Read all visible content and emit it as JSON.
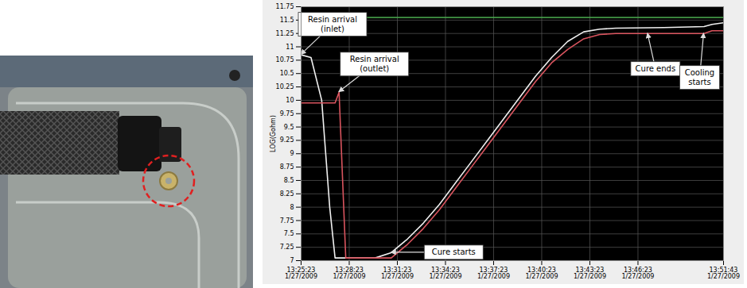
{
  "chart_data": {
    "type": "line",
    "ylabel": "LOG(Gohm)",
    "x": [
      "2009-01-27T13:25:23",
      "2009-01-27T13:26:00",
      "2009-01-27T13:26:40",
      "2009-01-27T13:27:10",
      "2009-01-27T13:27:30",
      "2009-01-27T13:27:45",
      "2009-01-27T13:28:10",
      "2009-01-27T13:30:00",
      "2009-01-27T13:31:00",
      "2009-01-27T13:32:00",
      "2009-01-27T13:33:00",
      "2009-01-27T13:34:00",
      "2009-01-27T13:35:00",
      "2009-01-27T13:36:00",
      "2009-01-27T13:37:00",
      "2009-01-27T13:38:00",
      "2009-01-27T13:39:00",
      "2009-01-27T13:40:00",
      "2009-01-27T13:41:00",
      "2009-01-27T13:42:00",
      "2009-01-27T13:43:00",
      "2009-01-27T13:44:00",
      "2009-01-27T13:45:00",
      "2009-01-27T13:48:00",
      "2009-01-27T13:50:30",
      "2009-01-27T13:51:00",
      "2009-01-27T13:51:43"
    ],
    "series": [
      {
        "color": "#f0f0f0",
        "values": [
          10.85,
          10.8,
          10.0,
          8.0,
          7.05,
          7.05,
          7.05,
          7.05,
          7.15,
          7.4,
          7.7,
          8.05,
          8.45,
          8.85,
          9.25,
          9.65,
          10.05,
          10.45,
          10.8,
          11.1,
          11.28,
          11.33,
          11.35,
          11.36,
          11.38,
          11.42,
          11.45
        ]
      },
      {
        "color": "#d9545e",
        "values": [
          9.95,
          9.95,
          9.95,
          9.95,
          9.95,
          10.15,
          7.05,
          7.05,
          7.05,
          7.3,
          7.6,
          7.95,
          8.35,
          8.75,
          9.15,
          9.55,
          9.95,
          10.35,
          10.7,
          10.95,
          11.15,
          11.23,
          11.25,
          11.25,
          11.25,
          11.3,
          11.3
        ]
      },
      {
        "color": "#4caf50",
        "values": [
          11.55,
          11.55,
          11.55,
          11.55,
          11.55,
          11.55,
          11.55,
          11.55,
          11.55,
          11.55,
          11.55,
          11.55,
          11.55,
          11.55,
          11.55,
          11.55,
          11.55,
          11.55,
          11.55,
          11.55,
          11.55,
          11.55,
          11.55,
          11.55,
          11.55,
          11.55,
          11.55
        ]
      }
    ],
    "xlim": [
      "2009-01-27T13:25:23",
      "2009-01-27T13:51:43"
    ],
    "xticks": [
      {
        "value": "2009-01-27T13:25:23",
        "label": "13:25:23\n1/27/2009"
      },
      {
        "value": "2009-01-27T13:28:23",
        "label": "13:28:23\n1/27/2009"
      },
      {
        "value": "2009-01-27T13:31:23",
        "label": "13:31:23\n1/27/2009"
      },
      {
        "value": "2009-01-27T13:34:23",
        "label": "13:34:23\n1/27/2009"
      },
      {
        "value": "2009-01-27T13:37:23",
        "label": "13:37:23\n1/27/2009"
      },
      {
        "value": "2009-01-27T13:40:23",
        "label": "13:40:23\n1/27/2009"
      },
      {
        "value": "2009-01-27T13:43:23",
        "label": "13:43:23\n1/27/2009"
      },
      {
        "value": "2009-01-27T13:46:23",
        "label": "13:46:23\n1/27/2009"
      },
      {
        "value": "2009-01-27T13:51:43",
        "label": "13:51:43\n1/27/2009"
      }
    ],
    "ylim": [
      7,
      11.75
    ],
    "yticks": [
      7,
      7.25,
      7.5,
      7.75,
      8,
      8.25,
      8.5,
      8.75,
      9,
      9.25,
      9.5,
      9.75,
      10,
      10.25,
      10.5,
      10.75,
      11,
      11.25,
      11.5,
      11.75
    ],
    "grid": true,
    "annotations": [
      {
        "text": "Resin arrival\n(inlet)",
        "x": "2009-01-27T13:25:23",
        "y": 10.85
      },
      {
        "text": "Resin arrival\n(outlet)",
        "x": "2009-01-27T13:27:45",
        "y": 10.15
      },
      {
        "text": "Cure starts",
        "x": "2009-01-27T13:31:00",
        "y": 7.15
      },
      {
        "text": "Cure ends",
        "x": "2009-01-27T13:47:00",
        "y": 11.25
      },
      {
        "text": "Cooling\nstarts",
        "x": "2009-01-27T13:50:30",
        "y": 11.25
      }
    ]
  }
}
